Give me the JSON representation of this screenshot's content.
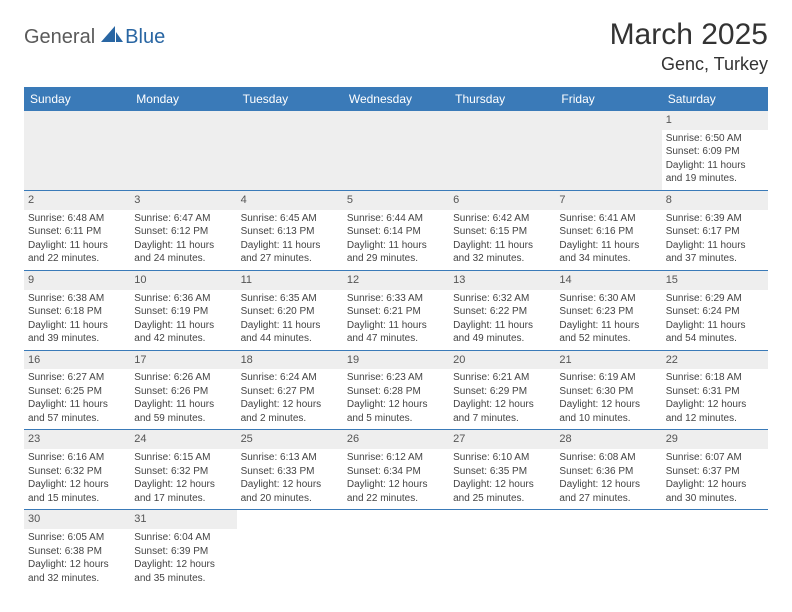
{
  "brand": {
    "part1": "General",
    "part2": "Blue"
  },
  "title": "March 2025",
  "location": "Genc, Turkey",
  "colors": {
    "header_bg": "#3a7ab8",
    "header_text": "#ffffff",
    "daynum_bg": "#eeeeee",
    "border": "#3a7ab8",
    "text": "#444444",
    "brand_gray": "#5a5a5a",
    "brand_blue": "#2966a3"
  },
  "fonts": {
    "title_size": 30,
    "location_size": 18,
    "dow_size": 12,
    "cell_size": 10
  },
  "days_of_week": [
    "Sunday",
    "Monday",
    "Tuesday",
    "Wednesday",
    "Thursday",
    "Friday",
    "Saturday"
  ],
  "weeks": [
    [
      null,
      null,
      null,
      null,
      null,
      null,
      {
        "n": "1",
        "sunrise": "Sunrise: 6:50 AM",
        "sunset": "Sunset: 6:09 PM",
        "daylight": "Daylight: 11 hours and 19 minutes."
      }
    ],
    [
      {
        "n": "2",
        "sunrise": "Sunrise: 6:48 AM",
        "sunset": "Sunset: 6:11 PM",
        "daylight": "Daylight: 11 hours and 22 minutes."
      },
      {
        "n": "3",
        "sunrise": "Sunrise: 6:47 AM",
        "sunset": "Sunset: 6:12 PM",
        "daylight": "Daylight: 11 hours and 24 minutes."
      },
      {
        "n": "4",
        "sunrise": "Sunrise: 6:45 AM",
        "sunset": "Sunset: 6:13 PM",
        "daylight": "Daylight: 11 hours and 27 minutes."
      },
      {
        "n": "5",
        "sunrise": "Sunrise: 6:44 AM",
        "sunset": "Sunset: 6:14 PM",
        "daylight": "Daylight: 11 hours and 29 minutes."
      },
      {
        "n": "6",
        "sunrise": "Sunrise: 6:42 AM",
        "sunset": "Sunset: 6:15 PM",
        "daylight": "Daylight: 11 hours and 32 minutes."
      },
      {
        "n": "7",
        "sunrise": "Sunrise: 6:41 AM",
        "sunset": "Sunset: 6:16 PM",
        "daylight": "Daylight: 11 hours and 34 minutes."
      },
      {
        "n": "8",
        "sunrise": "Sunrise: 6:39 AM",
        "sunset": "Sunset: 6:17 PM",
        "daylight": "Daylight: 11 hours and 37 minutes."
      }
    ],
    [
      {
        "n": "9",
        "sunrise": "Sunrise: 6:38 AM",
        "sunset": "Sunset: 6:18 PM",
        "daylight": "Daylight: 11 hours and 39 minutes."
      },
      {
        "n": "10",
        "sunrise": "Sunrise: 6:36 AM",
        "sunset": "Sunset: 6:19 PM",
        "daylight": "Daylight: 11 hours and 42 minutes."
      },
      {
        "n": "11",
        "sunrise": "Sunrise: 6:35 AM",
        "sunset": "Sunset: 6:20 PM",
        "daylight": "Daylight: 11 hours and 44 minutes."
      },
      {
        "n": "12",
        "sunrise": "Sunrise: 6:33 AM",
        "sunset": "Sunset: 6:21 PM",
        "daylight": "Daylight: 11 hours and 47 minutes."
      },
      {
        "n": "13",
        "sunrise": "Sunrise: 6:32 AM",
        "sunset": "Sunset: 6:22 PM",
        "daylight": "Daylight: 11 hours and 49 minutes."
      },
      {
        "n": "14",
        "sunrise": "Sunrise: 6:30 AM",
        "sunset": "Sunset: 6:23 PM",
        "daylight": "Daylight: 11 hours and 52 minutes."
      },
      {
        "n": "15",
        "sunrise": "Sunrise: 6:29 AM",
        "sunset": "Sunset: 6:24 PM",
        "daylight": "Daylight: 11 hours and 54 minutes."
      }
    ],
    [
      {
        "n": "16",
        "sunrise": "Sunrise: 6:27 AM",
        "sunset": "Sunset: 6:25 PM",
        "daylight": "Daylight: 11 hours and 57 minutes."
      },
      {
        "n": "17",
        "sunrise": "Sunrise: 6:26 AM",
        "sunset": "Sunset: 6:26 PM",
        "daylight": "Daylight: 11 hours and 59 minutes."
      },
      {
        "n": "18",
        "sunrise": "Sunrise: 6:24 AM",
        "sunset": "Sunset: 6:27 PM",
        "daylight": "Daylight: 12 hours and 2 minutes."
      },
      {
        "n": "19",
        "sunrise": "Sunrise: 6:23 AM",
        "sunset": "Sunset: 6:28 PM",
        "daylight": "Daylight: 12 hours and 5 minutes."
      },
      {
        "n": "20",
        "sunrise": "Sunrise: 6:21 AM",
        "sunset": "Sunset: 6:29 PM",
        "daylight": "Daylight: 12 hours and 7 minutes."
      },
      {
        "n": "21",
        "sunrise": "Sunrise: 6:19 AM",
        "sunset": "Sunset: 6:30 PM",
        "daylight": "Daylight: 12 hours and 10 minutes."
      },
      {
        "n": "22",
        "sunrise": "Sunrise: 6:18 AM",
        "sunset": "Sunset: 6:31 PM",
        "daylight": "Daylight: 12 hours and 12 minutes."
      }
    ],
    [
      {
        "n": "23",
        "sunrise": "Sunrise: 6:16 AM",
        "sunset": "Sunset: 6:32 PM",
        "daylight": "Daylight: 12 hours and 15 minutes."
      },
      {
        "n": "24",
        "sunrise": "Sunrise: 6:15 AM",
        "sunset": "Sunset: 6:32 PM",
        "daylight": "Daylight: 12 hours and 17 minutes."
      },
      {
        "n": "25",
        "sunrise": "Sunrise: 6:13 AM",
        "sunset": "Sunset: 6:33 PM",
        "daylight": "Daylight: 12 hours and 20 minutes."
      },
      {
        "n": "26",
        "sunrise": "Sunrise: 6:12 AM",
        "sunset": "Sunset: 6:34 PM",
        "daylight": "Daylight: 12 hours and 22 minutes."
      },
      {
        "n": "27",
        "sunrise": "Sunrise: 6:10 AM",
        "sunset": "Sunset: 6:35 PM",
        "daylight": "Daylight: 12 hours and 25 minutes."
      },
      {
        "n": "28",
        "sunrise": "Sunrise: 6:08 AM",
        "sunset": "Sunset: 6:36 PM",
        "daylight": "Daylight: 12 hours and 27 minutes."
      },
      {
        "n": "29",
        "sunrise": "Sunrise: 6:07 AM",
        "sunset": "Sunset: 6:37 PM",
        "daylight": "Daylight: 12 hours and 30 minutes."
      }
    ],
    [
      {
        "n": "30",
        "sunrise": "Sunrise: 6:05 AM",
        "sunset": "Sunset: 6:38 PM",
        "daylight": "Daylight: 12 hours and 32 minutes."
      },
      {
        "n": "31",
        "sunrise": "Sunrise: 6:04 AM",
        "sunset": "Sunset: 6:39 PM",
        "daylight": "Daylight: 12 hours and 35 minutes."
      },
      null,
      null,
      null,
      null,
      null
    ]
  ]
}
